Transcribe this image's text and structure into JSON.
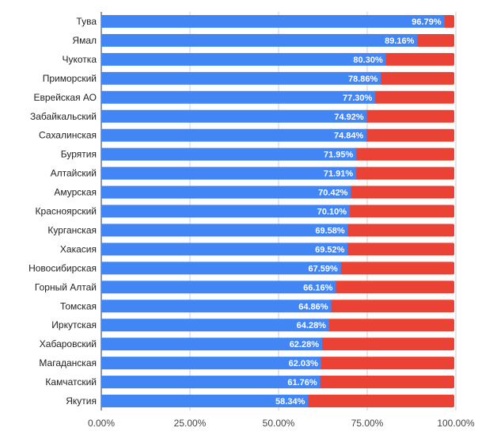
{
  "chart_data": {
    "type": "bar",
    "orientation": "horizontal",
    "stacked": "percent",
    "categories": [
      "Тува",
      "Ямал",
      "Чукотка",
      "Приморский",
      "Еврейская АО",
      "Забайкальский",
      "Сахалинская",
      "Бурятия",
      "Алтайский",
      "Амурская",
      "Красноярский",
      "Курганская",
      "Хакасия",
      "Новосибирская",
      "Горный Алтай",
      "Томская",
      "Иркутская",
      "Хабаровский",
      "Магаданская",
      "Камчатский",
      "Якутия"
    ],
    "series": [
      {
        "values": [
          96.79,
          89.16,
          80.3,
          78.86,
          77.3,
          74.92,
          74.84,
          71.95,
          71.91,
          70.42,
          70.1,
          69.58,
          69.52,
          67.59,
          66.16,
          64.86,
          64.28,
          62.28,
          62.03,
          61.76,
          58.34
        ],
        "color": "#4285F4"
      },
      {
        "values": [
          3.21,
          10.84,
          19.7,
          21.14,
          22.7,
          25.08,
          25.16,
          28.05,
          28.09,
          29.58,
          29.9,
          30.42,
          30.48,
          32.41,
          33.84,
          35.14,
          35.72,
          37.72,
          37.97,
          38.24,
          41.66
        ],
        "color": "#EA4335"
      }
    ],
    "data_labels": [
      "96.79%",
      "89.16%",
      "80.30%",
      "78.86%",
      "77.30%",
      "74.92%",
      "74.84%",
      "71.95%",
      "71.91%",
      "70.42%",
      "70.10%",
      "69.58%",
      "69.52%",
      "67.59%",
      "66.16%",
      "64.86%",
      "64.28%",
      "62.28%",
      "62.03%",
      "61.76%",
      "58.34%"
    ],
    "x_ticks": [
      "0.00%",
      "25.00%",
      "50.00%",
      "75.00%",
      "100.00%"
    ],
    "xlim": [
      0,
      100
    ],
    "grid": true,
    "legend": "none"
  }
}
